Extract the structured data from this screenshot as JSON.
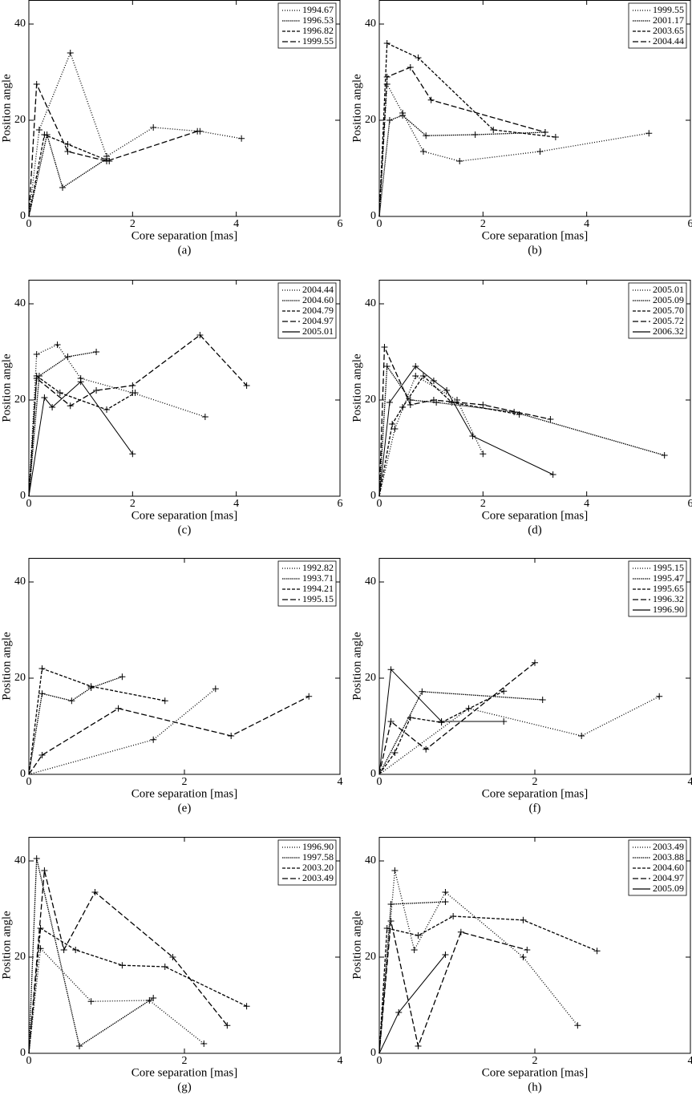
{
  "chart_data": [
    {
      "type": "line",
      "caption": "(a)",
      "xlabel": "Core separation [mas]",
      "ylabel": "Position angle",
      "xlim": [
        0,
        6
      ],
      "ylim": [
        0,
        45
      ],
      "xticks": [
        0,
        2,
        4,
        6
      ],
      "yticks": [
        0,
        20,
        40
      ],
      "legend": "upper right",
      "series": [
        {
          "name": "1994.67",
          "color": "#000000",
          "linestyle": "dotted",
          "x": [
            0,
            0.2,
            0.8,
            1.5,
            2.4,
            3.3,
            4.1
          ],
          "values": [
            0,
            18,
            34,
            12.5,
            18.5,
            17.7,
            16.2
          ]
        },
        {
          "name": "1996.53",
          "color": "#000000",
          "linestyle": "densely-dotted",
          "x": [
            0,
            0.35,
            0.65,
            1.5
          ],
          "values": [
            0,
            17,
            6,
            12
          ]
        },
        {
          "name": "1996.82",
          "color": "#000000",
          "linestyle": "dashed",
          "x": [
            0,
            0.3,
            0.75,
            1.55
          ],
          "values": [
            0,
            17,
            15,
            11.5
          ]
        },
        {
          "name": "1999.55",
          "color": "#000000",
          "linestyle": "long-dashed",
          "x": [
            0,
            0.15,
            0.75,
            1.5,
            3.25
          ],
          "values": [
            0,
            27.5,
            13.5,
            11.5,
            17.7
          ]
        }
      ]
    },
    {
      "type": "line",
      "caption": "(b)",
      "xlabel": "Core separation [mas]",
      "ylabel": "Position angle",
      "xlim": [
        0,
        6
      ],
      "ylim": [
        0,
        45
      ],
      "xticks": [
        0,
        2,
        4,
        6
      ],
      "yticks": [
        0,
        20,
        40
      ],
      "legend": "upper right",
      "series": [
        {
          "name": "1999.55",
          "color": "#000000",
          "linestyle": "dotted",
          "x": [
            0,
            0.15,
            0.45,
            0.85,
            1.55,
            3.1,
            5.2
          ],
          "values": [
            0,
            27.5,
            21.5,
            13.5,
            11.5,
            13.5,
            17.3
          ]
        },
        {
          "name": "2001.17",
          "color": "#000000",
          "linestyle": "densely-dotted",
          "x": [
            0,
            0.2,
            0.45,
            0.9,
            1.85,
            3.2
          ],
          "values": [
            0,
            20,
            21,
            16.8,
            17,
            17.5
          ]
        },
        {
          "name": "2003.65",
          "color": "#000000",
          "linestyle": "dashed",
          "x": [
            0,
            0.15,
            0.75,
            2.2,
            3.4
          ],
          "values": [
            0,
            36,
            33,
            18,
            16.5
          ]
        },
        {
          "name": "2004.44",
          "color": "#000000",
          "linestyle": "long-dashed",
          "x": [
            0,
            0.15,
            0.6,
            1,
            3.2
          ],
          "values": [
            0,
            29,
            31,
            24.2,
            17.5
          ]
        }
      ]
    },
    {
      "type": "line",
      "caption": "(c)",
      "xlabel": "Core separation [mas]",
      "ylabel": "Position angle",
      "xlim": [
        0,
        6
      ],
      "ylim": [
        0,
        45
      ],
      "xticks": [
        0,
        2,
        4,
        6
      ],
      "yticks": [
        0,
        20,
        40
      ],
      "legend": "upper right",
      "series": [
        {
          "name": "2004.44",
          "color": "#000000",
          "linestyle": "dotted",
          "x": [
            0,
            0.15,
            0.55,
            1,
            2,
            3.4
          ],
          "values": [
            0,
            29.5,
            31.5,
            24.5,
            21.5,
            16.5
          ]
        },
        {
          "name": "2004.60",
          "color": "#000000",
          "linestyle": "densely-dotted",
          "x": [
            0,
            0.2,
            0.75,
            1.3
          ],
          "values": [
            0,
            25,
            29,
            30
          ]
        },
        {
          "name": "2004.79",
          "color": "#000000",
          "linestyle": "dashed",
          "x": [
            0,
            0.15,
            0.6,
            1.5,
            2.05
          ],
          "values": [
            0,
            25,
            21.5,
            18,
            21.5
          ]
        },
        {
          "name": "2004.97",
          "color": "#000000",
          "linestyle": "long-dashed",
          "x": [
            0,
            0.15,
            0.8,
            1.3,
            2,
            3.3,
            4.2
          ],
          "values": [
            0,
            24.5,
            18.8,
            22,
            23,
            33.5,
            23
          ]
        },
        {
          "name": "2005.01",
          "color": "#000000",
          "linestyle": "solid",
          "x": [
            0,
            0.3,
            0.45,
            1,
            2
          ],
          "values": [
            0,
            20.5,
            18.5,
            23.8,
            8.8
          ]
        }
      ]
    },
    {
      "type": "line",
      "caption": "(d)",
      "xlabel": "Core separation [mas]",
      "ylabel": "Position angle",
      "xlim": [
        0,
        6
      ],
      "ylim": [
        0,
        45
      ],
      "xticks": [
        0,
        2,
        4,
        6
      ],
      "yticks": [
        0,
        20,
        40
      ],
      "legend": "upper right",
      "series": [
        {
          "name": "2005.01",
          "color": "#000000",
          "linestyle": "dotted",
          "x": [
            0,
            0.3,
            0.7,
            1.5,
            2
          ],
          "values": [
            0,
            14,
            25,
            20,
            8.8
          ]
        },
        {
          "name": "2005.09",
          "color": "#000000",
          "linestyle": "densely-dotted",
          "x": [
            0,
            0.15,
            0.6,
            1.1,
            2.6,
            5.5
          ],
          "values": [
            0,
            27,
            20,
            19.5,
            17.5,
            8.5
          ]
        },
        {
          "name": "2005.70",
          "color": "#000000",
          "linestyle": "dashed",
          "x": [
            0,
            0.25,
            0.45,
            0.85,
            1.4,
            2.7
          ],
          "values": [
            0,
            15,
            18.5,
            25,
            19.5,
            17
          ]
        },
        {
          "name": "2005.72",
          "color": "#000000",
          "linestyle": "long-dashed",
          "x": [
            0,
            0.1,
            0.6,
            1.05,
            2,
            3.3
          ],
          "values": [
            0,
            31,
            19,
            20,
            19,
            16
          ]
        },
        {
          "name": "2006.32",
          "color": "#000000",
          "linestyle": "solid",
          "x": [
            0,
            0.2,
            0.7,
            1.05,
            1.3,
            1.8,
            3.35
          ],
          "values": [
            0,
            19.5,
            27,
            24,
            22,
            12.5,
            4.5
          ]
        }
      ]
    },
    {
      "type": "line",
      "caption": "(e)",
      "xlabel": "Core separation [mas]",
      "ylabel": "Position angle",
      "xlim": [
        0,
        4
      ],
      "ylim": [
        0,
        45
      ],
      "xticks": [
        0,
        2,
        4
      ],
      "yticks": [
        0,
        20,
        40
      ],
      "legend": "upper right",
      "series": [
        {
          "name": "1992.82",
          "color": "#000000",
          "linestyle": "dotted",
          "x": [
            0,
            1.6,
            2.4
          ],
          "values": [
            0,
            7.2,
            17.8
          ]
        },
        {
          "name": "1993.71",
          "color": "#000000",
          "linestyle": "densely-dotted",
          "x": [
            0,
            0.17,
            0.55,
            0.8,
            1.2
          ],
          "values": [
            0,
            16.8,
            15.3,
            18,
            20.3
          ]
        },
        {
          "name": "1994.21",
          "color": "#000000",
          "linestyle": "dashed",
          "x": [
            0,
            0.17,
            0.8,
            1.75
          ],
          "values": [
            0,
            22,
            18.3,
            15.3
          ]
        },
        {
          "name": "1995.15",
          "color": "#000000",
          "linestyle": "long-dashed",
          "x": [
            0,
            0.17,
            1.15,
            2.6,
            3.6
          ],
          "values": [
            0,
            4,
            13.7,
            8,
            16.2
          ]
        }
      ]
    },
    {
      "type": "line",
      "caption": "(f)",
      "xlabel": "Core separation [mas]",
      "ylabel": "Position angle",
      "xlim": [
        0,
        4
      ],
      "ylim": [
        0,
        45
      ],
      "xticks": [
        0,
        2,
        4
      ],
      "yticks": [
        0,
        20,
        40
      ],
      "legend": "upper right",
      "series": [
        {
          "name": "1995.15",
          "color": "#000000",
          "linestyle": "dotted",
          "x": [
            0,
            1.15,
            2.6,
            3.6
          ],
          "values": [
            0,
            13.7,
            8,
            16.2
          ]
        },
        {
          "name": "1995.47",
          "color": "#000000",
          "linestyle": "densely-dotted",
          "x": [
            0,
            0.55,
            2.1
          ],
          "values": [
            0,
            17.2,
            15.5
          ]
        },
        {
          "name": "1995.65",
          "color": "#000000",
          "linestyle": "dashed",
          "x": [
            0,
            0.2,
            0.4,
            0.8,
            1.6
          ],
          "values": [
            0,
            4.5,
            11.8,
            10.8,
            17.3
          ]
        },
        {
          "name": "1996.32",
          "color": "#000000",
          "linestyle": "long-dashed",
          "x": [
            0,
            0.15,
            0.6,
            2
          ],
          "values": [
            0,
            11,
            5.2,
            23.2
          ]
        },
        {
          "name": "1996.90",
          "color": "#000000",
          "linestyle": "solid",
          "x": [
            0,
            0.15,
            0.8,
            1.6
          ],
          "values": [
            0,
            21.8,
            11,
            11
          ]
        }
      ]
    },
    {
      "type": "line",
      "caption": "(g)",
      "xlabel": "Core separation [mas]",
      "ylabel": "Position angle",
      "xlim": [
        0,
        4
      ],
      "ylim": [
        0,
        45
      ],
      "xticks": [
        0,
        2,
        4
      ],
      "yticks": [
        0,
        20,
        40
      ],
      "legend": "upper right",
      "series": [
        {
          "name": "1996.90",
          "color": "#000000",
          "linestyle": "dotted",
          "x": [
            0,
            0.15,
            0.8,
            1.55,
            2.25
          ],
          "values": [
            0,
            21.8,
            10.8,
            11,
            2
          ]
        },
        {
          "name": "1997.58",
          "color": "#000000",
          "linestyle": "densely-dotted",
          "x": [
            0,
            0.1,
            0.65,
            1.6
          ],
          "values": [
            0,
            40.5,
            1.5,
            11.5
          ]
        },
        {
          "name": "2003.20",
          "color": "#000000",
          "linestyle": "dashed",
          "x": [
            0,
            0.15,
            0.6,
            1.2,
            1.75,
            2.8
          ],
          "values": [
            0,
            26,
            21.5,
            18.3,
            18,
            9.8
          ]
        },
        {
          "name": "2003.49",
          "color": "#000000",
          "linestyle": "long-dashed",
          "x": [
            0,
            0.2,
            0.45,
            0.85,
            1.85,
            2.55
          ],
          "values": [
            0,
            38,
            21.5,
            33.5,
            20,
            5.8
          ]
        }
      ]
    },
    {
      "type": "line",
      "caption": "(h)",
      "xlabel": "Core separation [mas]",
      "ylabel": "Position angle",
      "xlim": [
        0,
        4
      ],
      "ylim": [
        0,
        45
      ],
      "xticks": [
        0,
        2,
        4
      ],
      "yticks": [
        0,
        20,
        40
      ],
      "legend": "upper right",
      "series": [
        {
          "name": "2003.49",
          "color": "#000000",
          "linestyle": "dotted",
          "x": [
            0,
            0.2,
            0.45,
            0.85,
            1.85,
            2.55
          ],
          "values": [
            0,
            38,
            21.5,
            33.5,
            20,
            5.8
          ]
        },
        {
          "name": "2003.88",
          "color": "#000000",
          "linestyle": "densely-dotted",
          "x": [
            0,
            0.15,
            0.85
          ],
          "values": [
            0,
            31,
            31.5
          ]
        },
        {
          "name": "2004.60",
          "color": "#000000",
          "linestyle": "dashed",
          "x": [
            0,
            0.1,
            0.5,
            0.95,
            1.85,
            2.8
          ],
          "values": [
            0,
            26,
            24.5,
            28.5,
            27.7,
            21.3
          ]
        },
        {
          "name": "2004.97",
          "color": "#000000",
          "linestyle": "long-dashed",
          "x": [
            0,
            0.15,
            0.5,
            1.05,
            1.9
          ],
          "values": [
            0,
            27.5,
            1.5,
            25.2,
            21.5
          ]
        },
        {
          "name": "2005.09",
          "color": "#000000",
          "linestyle": "solid",
          "x": [
            0,
            0.25,
            0.85
          ],
          "values": [
            0,
            8.5,
            20.5
          ]
        }
      ]
    }
  ]
}
